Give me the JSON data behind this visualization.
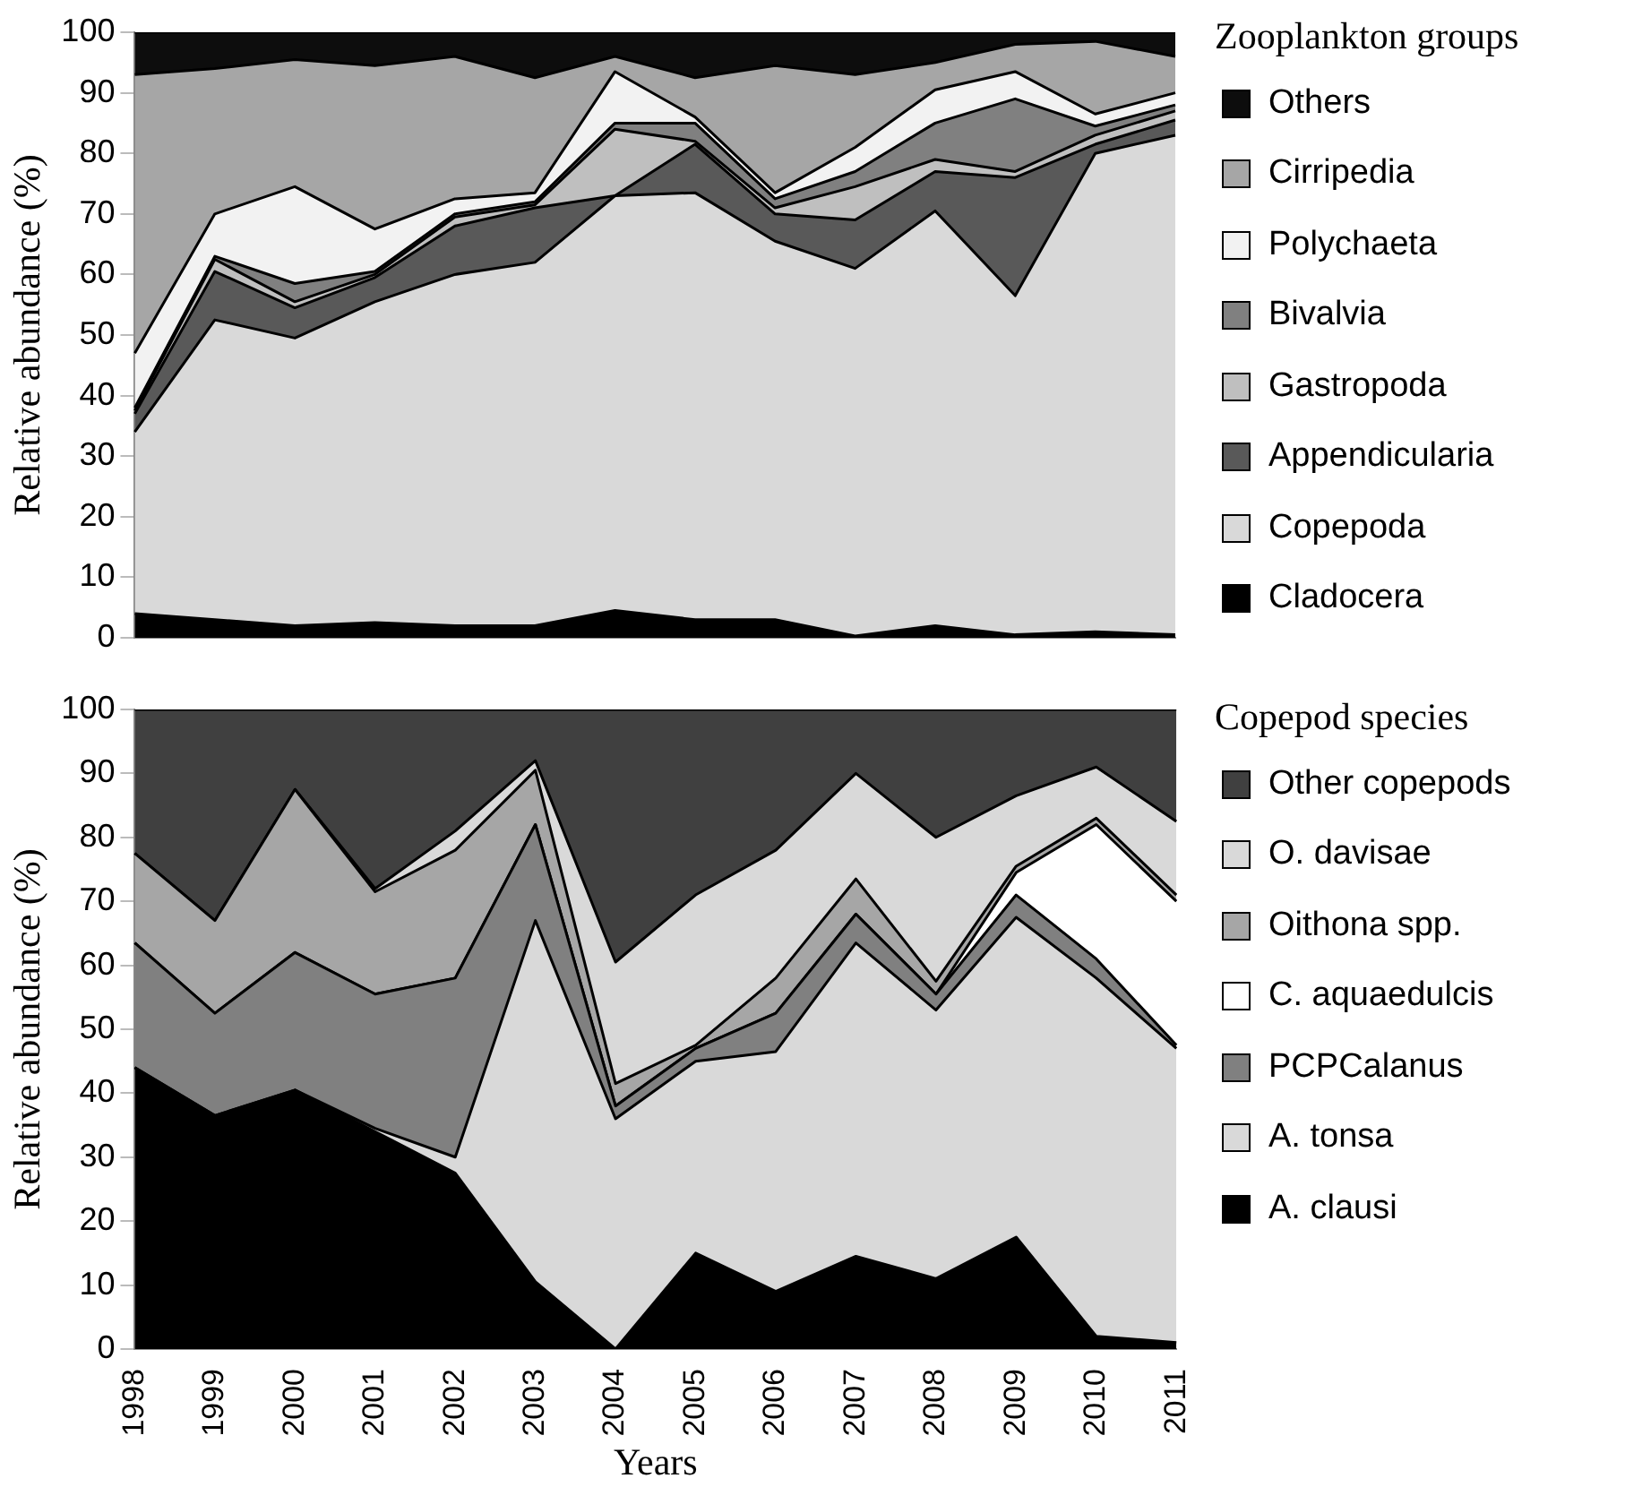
{
  "chart_data": [
    {
      "type": "area",
      "stacked": true,
      "ylabel": "Relative abundance (%)",
      "legend_title": "Zooplankton groups",
      "legend": "right",
      "tick_labels": "y",
      "grid": false,
      "categories": [
        "1998",
        "1999",
        "2000",
        "2001",
        "2002",
        "2003",
        "2004",
        "2005",
        "2006",
        "2007",
        "2008",
        "2009",
        "2010",
        "2011"
      ],
      "ylim": [
        0,
        100
      ],
      "yticks": [
        0,
        10,
        20,
        30,
        40,
        50,
        60,
        70,
        80,
        90,
        100
      ],
      "series": [
        {
          "name": "Cladocera",
          "color": "#000000",
          "values": [
            4,
            3,
            2,
            2.5,
            2,
            2,
            4.5,
            3,
            3,
            0.3,
            2,
            0.5,
            1,
            0.5
          ]
        },
        {
          "name": "Copepoda",
          "color": "#d9d9d9",
          "values": [
            30,
            49.5,
            47.5,
            53,
            58,
            60,
            68.5,
            70.5,
            62.5,
            60.7,
            68.5,
            56,
            79,
            82.5
          ]
        },
        {
          "name": "Appendicularia",
          "color": "#595959",
          "values": [
            3,
            8,
            5,
            4,
            8,
            9,
            0,
            8,
            4.5,
            8,
            6.5,
            19.5,
            1.5,
            2.5
          ]
        },
        {
          "name": "Gastropoda",
          "color": "#bfbfbf",
          "values": [
            0.5,
            2,
            1,
            0.5,
            1.5,
            0.5,
            11,
            0.5,
            1,
            5.5,
            2,
            1,
            1.5,
            1.5
          ]
        },
        {
          "name": "Bivalvia",
          "color": "#808080",
          "values": [
            0.5,
            0.5,
            3,
            0.5,
            0.5,
            0.5,
            1,
            3,
            1.5,
            2.5,
            6,
            12,
            1.5,
            1
          ]
        },
        {
          "name": "Polychaeta",
          "color": "#f2f2f2",
          "values": [
            9,
            7,
            16,
            7,
            2.5,
            1.5,
            8.5,
            1,
            1,
            4,
            5.5,
            4.5,
            2,
            2
          ]
        },
        {
          "name": "Cirripedia",
          "color": "#a6a6a6",
          "values": [
            46,
            24,
            21,
            27,
            23.5,
            19,
            2.5,
            6.5,
            21,
            12,
            4.5,
            4.5,
            12,
            6
          ]
        },
        {
          "name": "Others",
          "color": "#0d0d0d",
          "values": [
            7,
            6,
            4.5,
            5.5,
            4,
            7.5,
            4,
            7.5,
            5.5,
            7,
            5,
            2,
            1.5,
            4
          ]
        }
      ]
    },
    {
      "type": "area",
      "stacked": true,
      "ylabel": "Relative abundance (%)",
      "xlabel": "Years",
      "legend_title": "Copepod species",
      "legend": "right",
      "grid": false,
      "categories": [
        "1998",
        "1999",
        "2000",
        "2001",
        "2002",
        "2003",
        "2004",
        "2005",
        "2006",
        "2007",
        "2008",
        "2009",
        "2010",
        "2011"
      ],
      "ylim": [
        0,
        100
      ],
      "yticks": [
        0,
        10,
        20,
        30,
        40,
        50,
        60,
        70,
        80,
        90,
        100
      ],
      "series": [
        {
          "name": "A. clausi",
          "color": "#000000",
          "values": [
            44,
            36.5,
            40.5,
            34,
            27.5,
            10.5,
            0,
            15,
            9,
            14.5,
            11,
            17.5,
            2,
            1
          ]
        },
        {
          "name": "A. tonsa",
          "color": "#d9d9d9",
          "values": [
            0,
            0,
            0,
            0.5,
            2.5,
            56.5,
            36,
            30,
            37.5,
            49,
            42,
            50,
            56,
            46
          ]
        },
        {
          "name": "PCPCalanus",
          "color": "#808080",
          "values": [
            19.5,
            16,
            21.5,
            21,
            28,
            15,
            2,
            2,
            6,
            4.5,
            2.5,
            3.5,
            3,
            0.5
          ]
        },
        {
          "name": "C. aquaedulcis",
          "color": "#ffffff",
          "values": [
            0,
            0,
            0,
            0,
            0,
            0,
            0,
            0,
            0,
            0,
            0,
            3.5,
            21,
            22.5
          ]
        },
        {
          "name": "Oithona spp.",
          "color": "#a6a6a6",
          "values": [
            14,
            14.5,
            25.5,
            16,
            20,
            8.5,
            3.5,
            0.5,
            5.5,
            5.5,
            2,
            1,
            1,
            1
          ]
        },
        {
          "name": "O. davisae",
          "color": "#d9d9d9",
          "values": [
            0,
            0,
            0,
            0.5,
            3,
            1.5,
            19,
            23.5,
            20,
            16.5,
            22.5,
            11,
            8,
            11.5
          ]
        },
        {
          "name": "Other copepods",
          "color": "#404040",
          "values": [
            22.5,
            33,
            12.5,
            28,
            19,
            8,
            39.5,
            29,
            22,
            10,
            20,
            13.5,
            9,
            17.5
          ]
        }
      ]
    }
  ]
}
